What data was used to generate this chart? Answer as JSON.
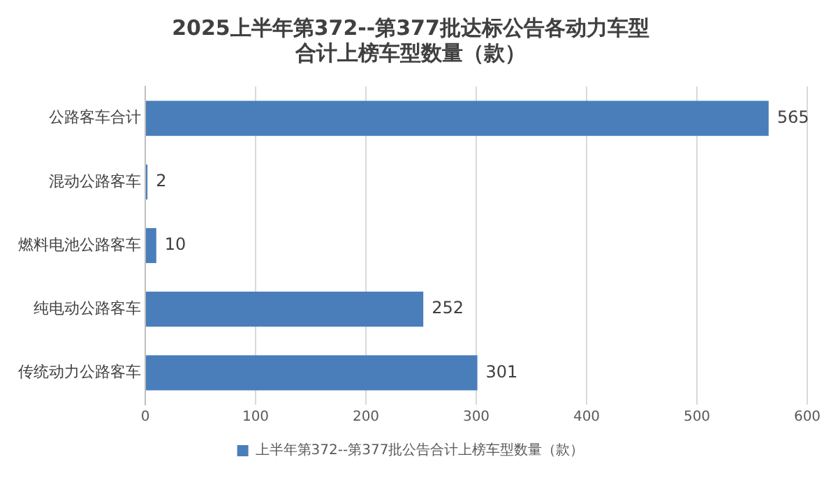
{
  "chart_data": {
    "type": "bar",
    "orientation": "horizontal",
    "title": "2025上半年第372--第377批达标公告各动力车型合计上榜车型数量（款）",
    "categories": [
      "公路客车合计",
      "混动公路客车",
      "燃料电池公路客车",
      "纯电动公路客车",
      "传统动力公路客车"
    ],
    "series": [
      {
        "name": "上半年第372--第377批公告合计上榜车型数量（款）",
        "color": "#4a7ebb",
        "values": [
          565,
          2,
          10,
          252,
          301
        ]
      }
    ],
    "xlim": [
      0,
      600
    ],
    "xticks": [
      0,
      100,
      200,
      300,
      400,
      500,
      600
    ],
    "grid": "x",
    "legend": "bottom",
    "data_labels": true
  }
}
